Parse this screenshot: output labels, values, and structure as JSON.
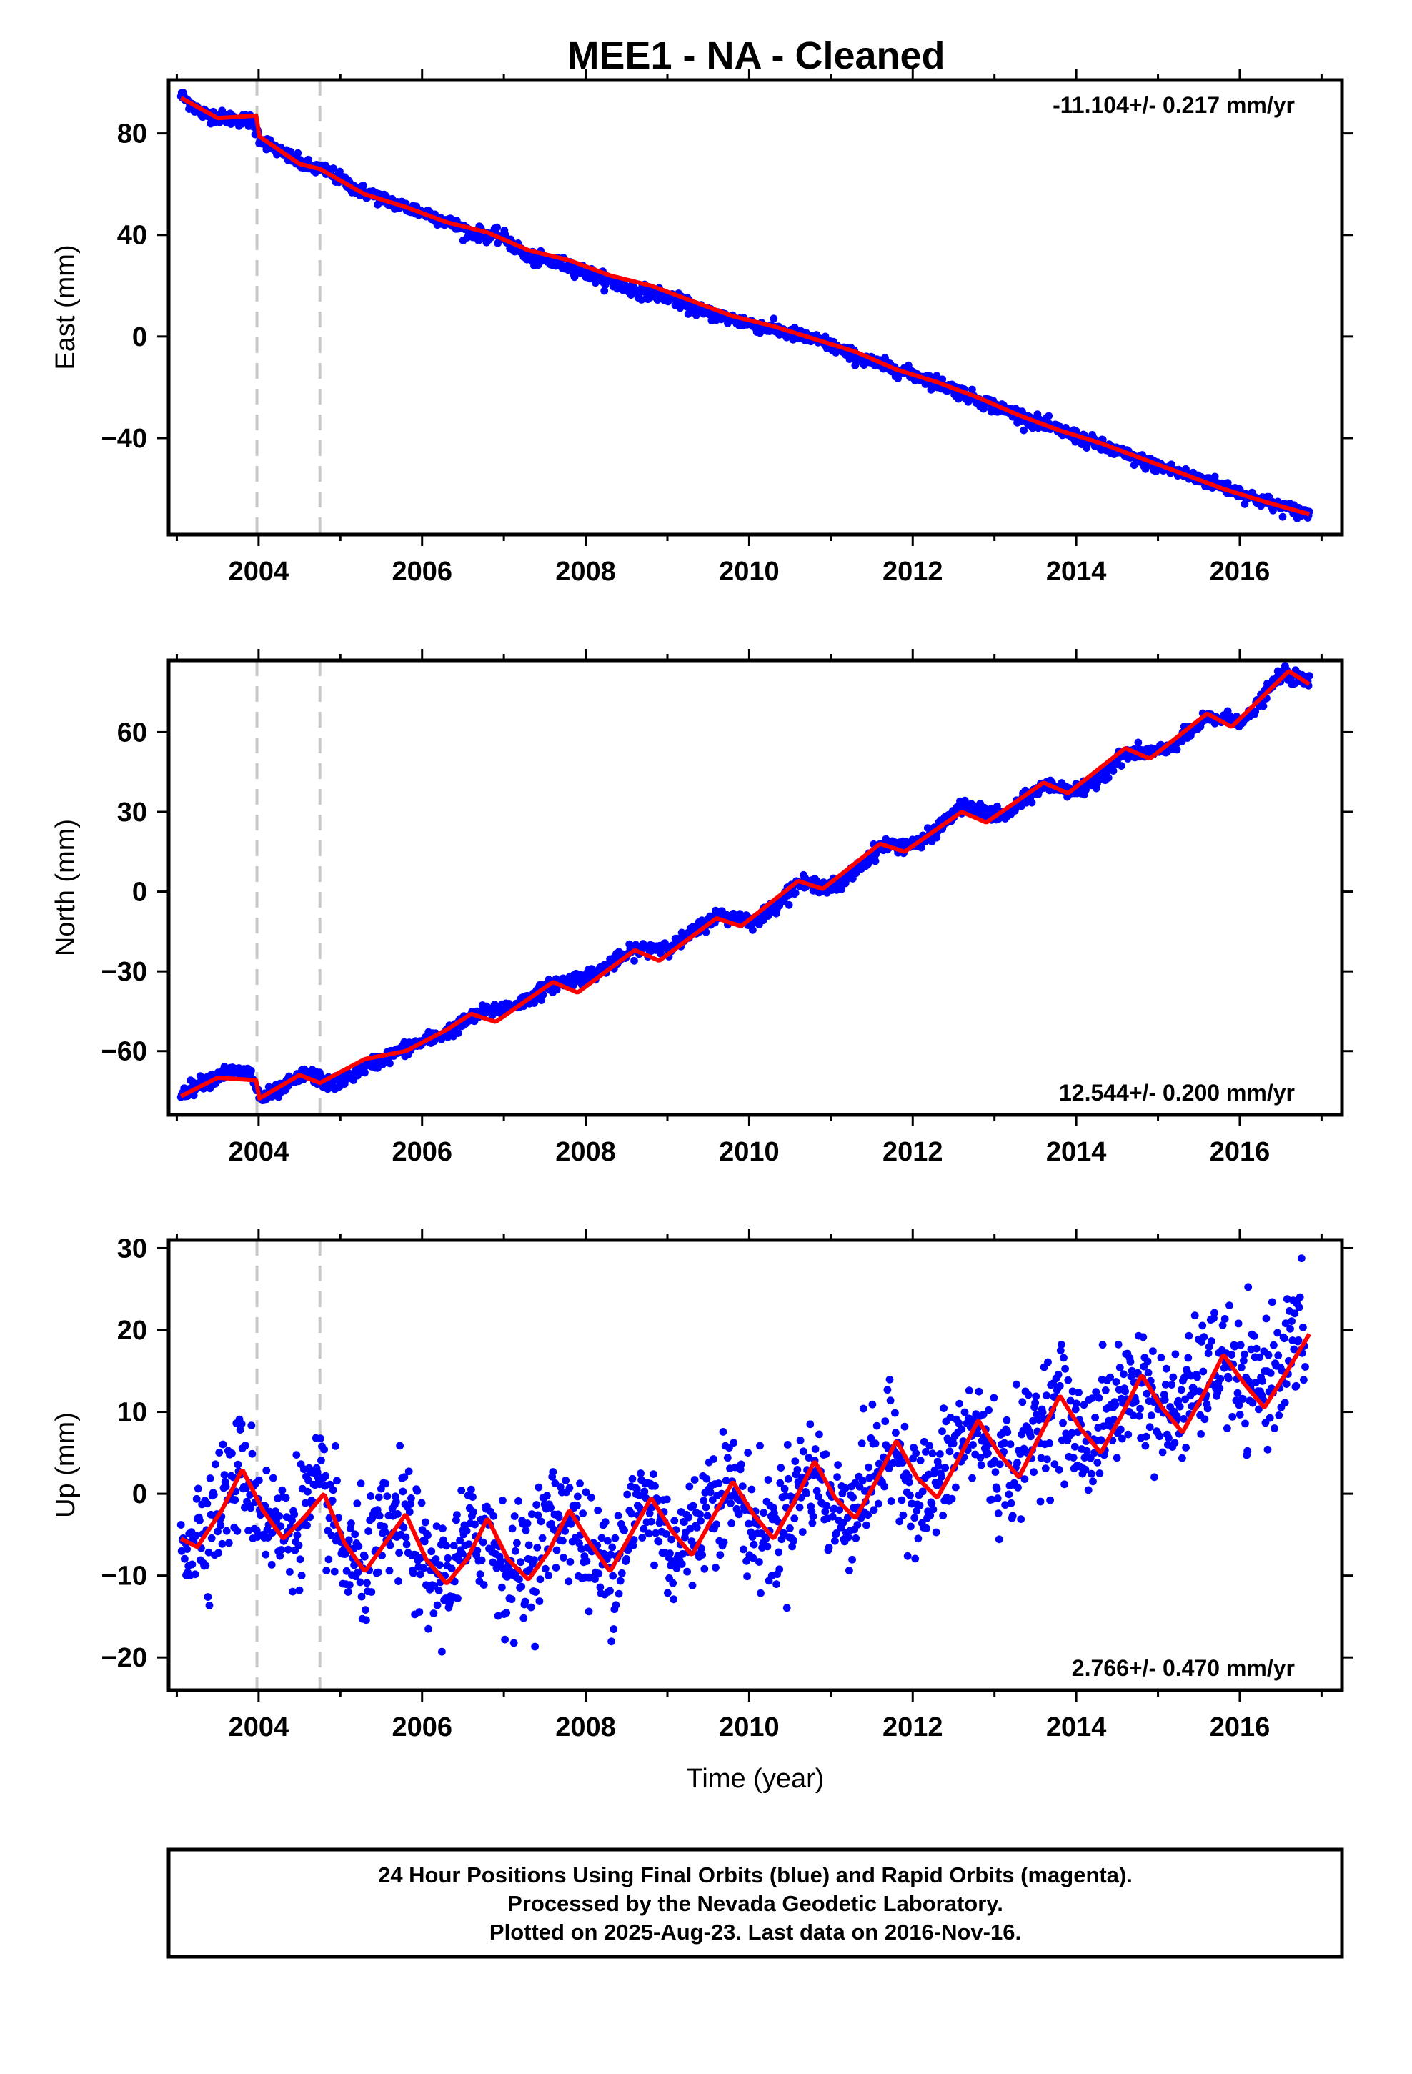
{
  "title": "MEE1  - NA - Cleaned",
  "chart_data": [
    {
      "type": "scatter",
      "ylabel": "East (mm)",
      "xlabel": "",
      "xlim": [
        2002.9,
        2017.25
      ],
      "ylim": [
        -78,
        101
      ],
      "xticks": [
        2004,
        2006,
        2008,
        2010,
        2012,
        2014,
        2016
      ],
      "yticks": [
        -40,
        0,
        40,
        80
      ],
      "rate_label": "-11.104+/- 0.217 mm/yr",
      "rate_position": "top-right",
      "series": [
        {
          "color": "#0000ff",
          "x": [
            2003.05,
            2003.3,
            2003.6,
            2003.9,
            2004.02,
            2004.3,
            2004.6,
            2004.85,
            2005.2,
            2005.7,
            2006.1,
            2006.6,
            2007.0,
            2007.3,
            2007.8,
            2008.1,
            2008.5,
            2009.0,
            2009.4,
            2009.9,
            2010.4,
            2010.9,
            2011.3,
            2011.8,
            2012.3,
            2012.8,
            2013.3,
            2013.8,
            2014.3,
            2014.8,
            2015.3,
            2015.8,
            2016.2,
            2016.6,
            2016.85
          ],
          "y": [
            95,
            88,
            86,
            85,
            78,
            72,
            67,
            65,
            58,
            52,
            48,
            41,
            39,
            31,
            28,
            24,
            19,
            16,
            10,
            6,
            2,
            -2,
            -8,
            -13,
            -18,
            -25,
            -31,
            -37,
            -43,
            -49,
            -54,
            -59,
            -64,
            -68,
            -70
          ]
        }
      ],
      "fit": {
        "color": "#ff0000",
        "x": [
          2003.05,
          2003.5,
          2003.98,
          2004.0,
          2004.5,
          2004.75,
          2005.3,
          2005.8,
          2006.3,
          2006.8,
          2007.3,
          2007.8,
          2008.3,
          2008.8,
          2009.3,
          2009.8,
          2010.3,
          2010.8,
          2011.3,
          2011.8,
          2012.3,
          2012.8,
          2013.3,
          2013.8,
          2014.3,
          2014.8,
          2015.3,
          2015.8,
          2016.3,
          2016.85
        ],
        "y": [
          94,
          86,
          87,
          79,
          68,
          66,
          56,
          51,
          45,
          41,
          34,
          30,
          24,
          20,
          14,
          8,
          4,
          -1,
          -6,
          -13,
          -18,
          -24,
          -31,
          -37,
          -42,
          -48,
          -54,
          -60,
          -65,
          -70
        ]
      },
      "offsets": [
        2003.98,
        2004.75
      ]
    },
    {
      "type": "scatter",
      "ylabel": "North (mm)",
      "xlabel": "",
      "xlim": [
        2002.9,
        2017.25
      ],
      "ylim": [
        -84,
        87
      ],
      "xticks": [
        2004,
        2006,
        2008,
        2010,
        2012,
        2014,
        2016
      ],
      "yticks": [
        -60,
        -30,
        0,
        30,
        60
      ],
      "rate_label": "12.544+/- 0.200 mm/yr",
      "rate_position": "bottom-right",
      "series": [
        {
          "color": "#0000ff",
          "x": [
            2003.05,
            2003.3,
            2003.6,
            2003.9,
            2004.02,
            2004.3,
            2004.6,
            2004.9,
            2005.3,
            2005.8,
            2006.3,
            2006.7,
            2007.2,
            2007.6,
            2008.1,
            2008.6,
            2009.1,
            2009.6,
            2010.1,
            2010.6,
            2011.1,
            2011.6,
            2012.1,
            2012.6,
            2013.1,
            2013.6,
            2014.1,
            2014.6,
            2015.1,
            2015.6,
            2016.1,
            2016.5,
            2016.85
          ],
          "y": [
            -76,
            -72,
            -68,
            -68,
            -78,
            -74,
            -68,
            -73,
            -66,
            -59,
            -53,
            -46,
            -42,
            -35,
            -31,
            -22,
            -20,
            -9,
            -11,
            3,
            2,
            17,
            18,
            32,
            28,
            40,
            38,
            52,
            53,
            65,
            65,
            82,
            79
          ]
        }
      ],
      "fit": {
        "color": "#ff0000",
        "x": [
          2003.05,
          2003.5,
          2003.98,
          2004.0,
          2004.5,
          2004.75,
          2005.3,
          2005.8,
          2006.3,
          2006.6,
          2006.9,
          2007.6,
          2007.9,
          2008.6,
          2008.9,
          2009.6,
          2009.9,
          2010.6,
          2010.9,
          2011.6,
          2011.9,
          2012.6,
          2012.9,
          2013.6,
          2013.9,
          2014.6,
          2014.9,
          2015.6,
          2015.9,
          2016.6,
          2016.85
        ],
        "y": [
          -77,
          -70,
          -71,
          -78,
          -69,
          -72,
          -63,
          -60,
          -52,
          -46,
          -49,
          -34,
          -38,
          -22,
          -26,
          -10,
          -13,
          4,
          1,
          18,
          15,
          30,
          26,
          41,
          37,
          54,
          50,
          67,
          62,
          83,
          78
        ]
      },
      "offsets": [
        2003.98,
        2004.75
      ]
    },
    {
      "type": "scatter",
      "ylabel": "Up (mm)",
      "xlabel": "Time (year)",
      "xlim": [
        2002.9,
        2017.25
      ],
      "ylim": [
        -24,
        31
      ],
      "xticks": [
        2004,
        2006,
        2008,
        2010,
        2012,
        2014,
        2016
      ],
      "yticks": [
        -20,
        -10,
        0,
        10,
        20,
        30
      ],
      "rate_label": "2.766+/- 0.470 mm/yr",
      "rate_position": "bottom-right",
      "series": [
        {
          "color": "#0000ff",
          "x": [
            2003.05,
            2003.3,
            2003.55,
            2003.8,
            2004.05,
            2004.3,
            2004.55,
            2004.8,
            2005.05,
            2005.3,
            2005.55,
            2005.8,
            2006.05,
            2006.3,
            2006.55,
            2006.8,
            2007.05,
            2007.3,
            2007.55,
            2007.8,
            2008.05,
            2008.3,
            2008.55,
            2008.8,
            2009.05,
            2009.3,
            2009.55,
            2009.8,
            2010.05,
            2010.3,
            2010.55,
            2010.8,
            2011.05,
            2011.3,
            2011.55,
            2011.8,
            2012.05,
            2012.3,
            2012.55,
            2012.8,
            2013.05,
            2013.3,
            2013.55,
            2013.8,
            2014.05,
            2014.3,
            2014.55,
            2014.8,
            2015.05,
            2015.3,
            2015.55,
            2015.8,
            2016.05,
            2016.3,
            2016.55,
            2016.8
          ],
          "y": [
            -6,
            -4,
            -1,
            3,
            -2,
            -5,
            -2,
            0,
            -8,
            -9,
            -5,
            -3,
            -10,
            -10,
            -6,
            -4,
            -10,
            -8,
            -4,
            -2,
            -8,
            -9,
            -3,
            -1,
            -7,
            -5,
            0,
            1,
            -4,
            -5,
            0,
            3,
            -3,
            -1,
            3,
            6,
            -1,
            1,
            6,
            8,
            3,
            4,
            9,
            11,
            6,
            8,
            12,
            14,
            9,
            11,
            14,
            17,
            12,
            14,
            17,
            19
          ]
        }
      ],
      "fit": {
        "color": "#ff0000",
        "x": [
          2003.05,
          2003.25,
          2003.55,
          2003.8,
          2004.05,
          2004.3,
          2004.55,
          2004.8,
          2005.05,
          2005.3,
          2005.55,
          2005.8,
          2006.05,
          2006.3,
          2006.55,
          2006.8,
          2007.05,
          2007.3,
          2007.55,
          2007.8,
          2008.05,
          2008.3,
          2008.55,
          2008.8,
          2009.05,
          2009.3,
          2009.55,
          2009.8,
          2010.05,
          2010.3,
          2010.55,
          2010.8,
          2011.05,
          2011.3,
          2011.55,
          2011.8,
          2012.05,
          2012.3,
          2012.55,
          2012.8,
          2013.05,
          2013.3,
          2013.55,
          2013.8,
          2014.05,
          2014.3,
          2014.55,
          2014.8,
          2015.05,
          2015.3,
          2015.55,
          2015.8,
          2016.05,
          2016.3,
          2016.55,
          2016.85
        ],
        "y": [
          -5.5,
          -6.5,
          -2.0,
          3.0,
          -2.0,
          -5.5,
          -3.0,
          0.0,
          -6.0,
          -9.5,
          -6.0,
          -2.5,
          -8.0,
          -11.0,
          -8.0,
          -3.0,
          -8.0,
          -10.5,
          -7.0,
          -2.0,
          -6.0,
          -9.5,
          -5.0,
          -0.5,
          -4.5,
          -7.5,
          -3.0,
          1.5,
          -2.5,
          -5.5,
          -1.0,
          4.0,
          -0.5,
          -3.0,
          1.5,
          6.5,
          2.0,
          -0.5,
          4.0,
          9.0,
          5.0,
          2.0,
          7.0,
          12.0,
          8.0,
          5.0,
          9.5,
          14.5,
          10.5,
          7.5,
          12.0,
          17.0,
          13.5,
          10.5,
          14.5,
          19.5
        ]
      },
      "offsets": [
        2003.98,
        2004.75
      ]
    }
  ],
  "footer": {
    "line1": "24 Hour Positions Using Final Orbits (blue) and Rapid Orbits (magenta).",
    "line2": "Processed by the Nevada Geodetic Laboratory.",
    "line3": "Plotted on 2025-Aug-23. Last data on 2016-Nov-16."
  }
}
